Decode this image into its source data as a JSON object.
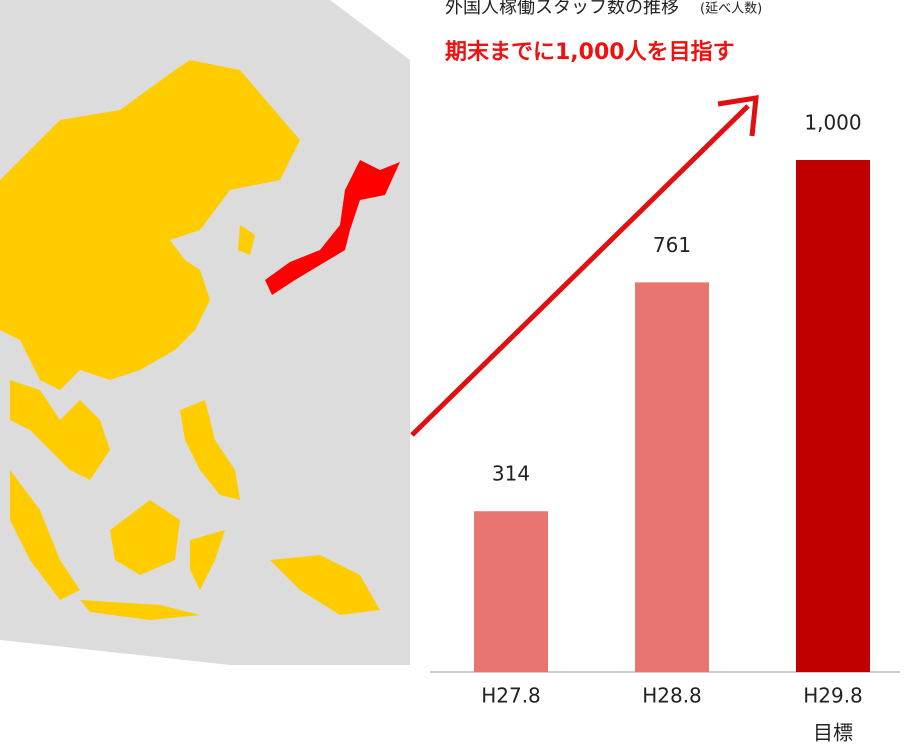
{
  "chart_data": {
    "type": "bar",
    "title": "外国人稼働スタッフ数の推移",
    "subtitle": "(延べ人数)",
    "headline": "期末までに1,000人を目指す",
    "categories": [
      "H27.8",
      "H28.8",
      "H29.8"
    ],
    "category_notes": [
      null,
      null,
      "目標"
    ],
    "values": [
      314,
      761,
      1000
    ],
    "value_labels": [
      "314",
      "761",
      "1,000"
    ],
    "colors": [
      "#e87572",
      "#e87572",
      "#c00000"
    ]
  }
}
